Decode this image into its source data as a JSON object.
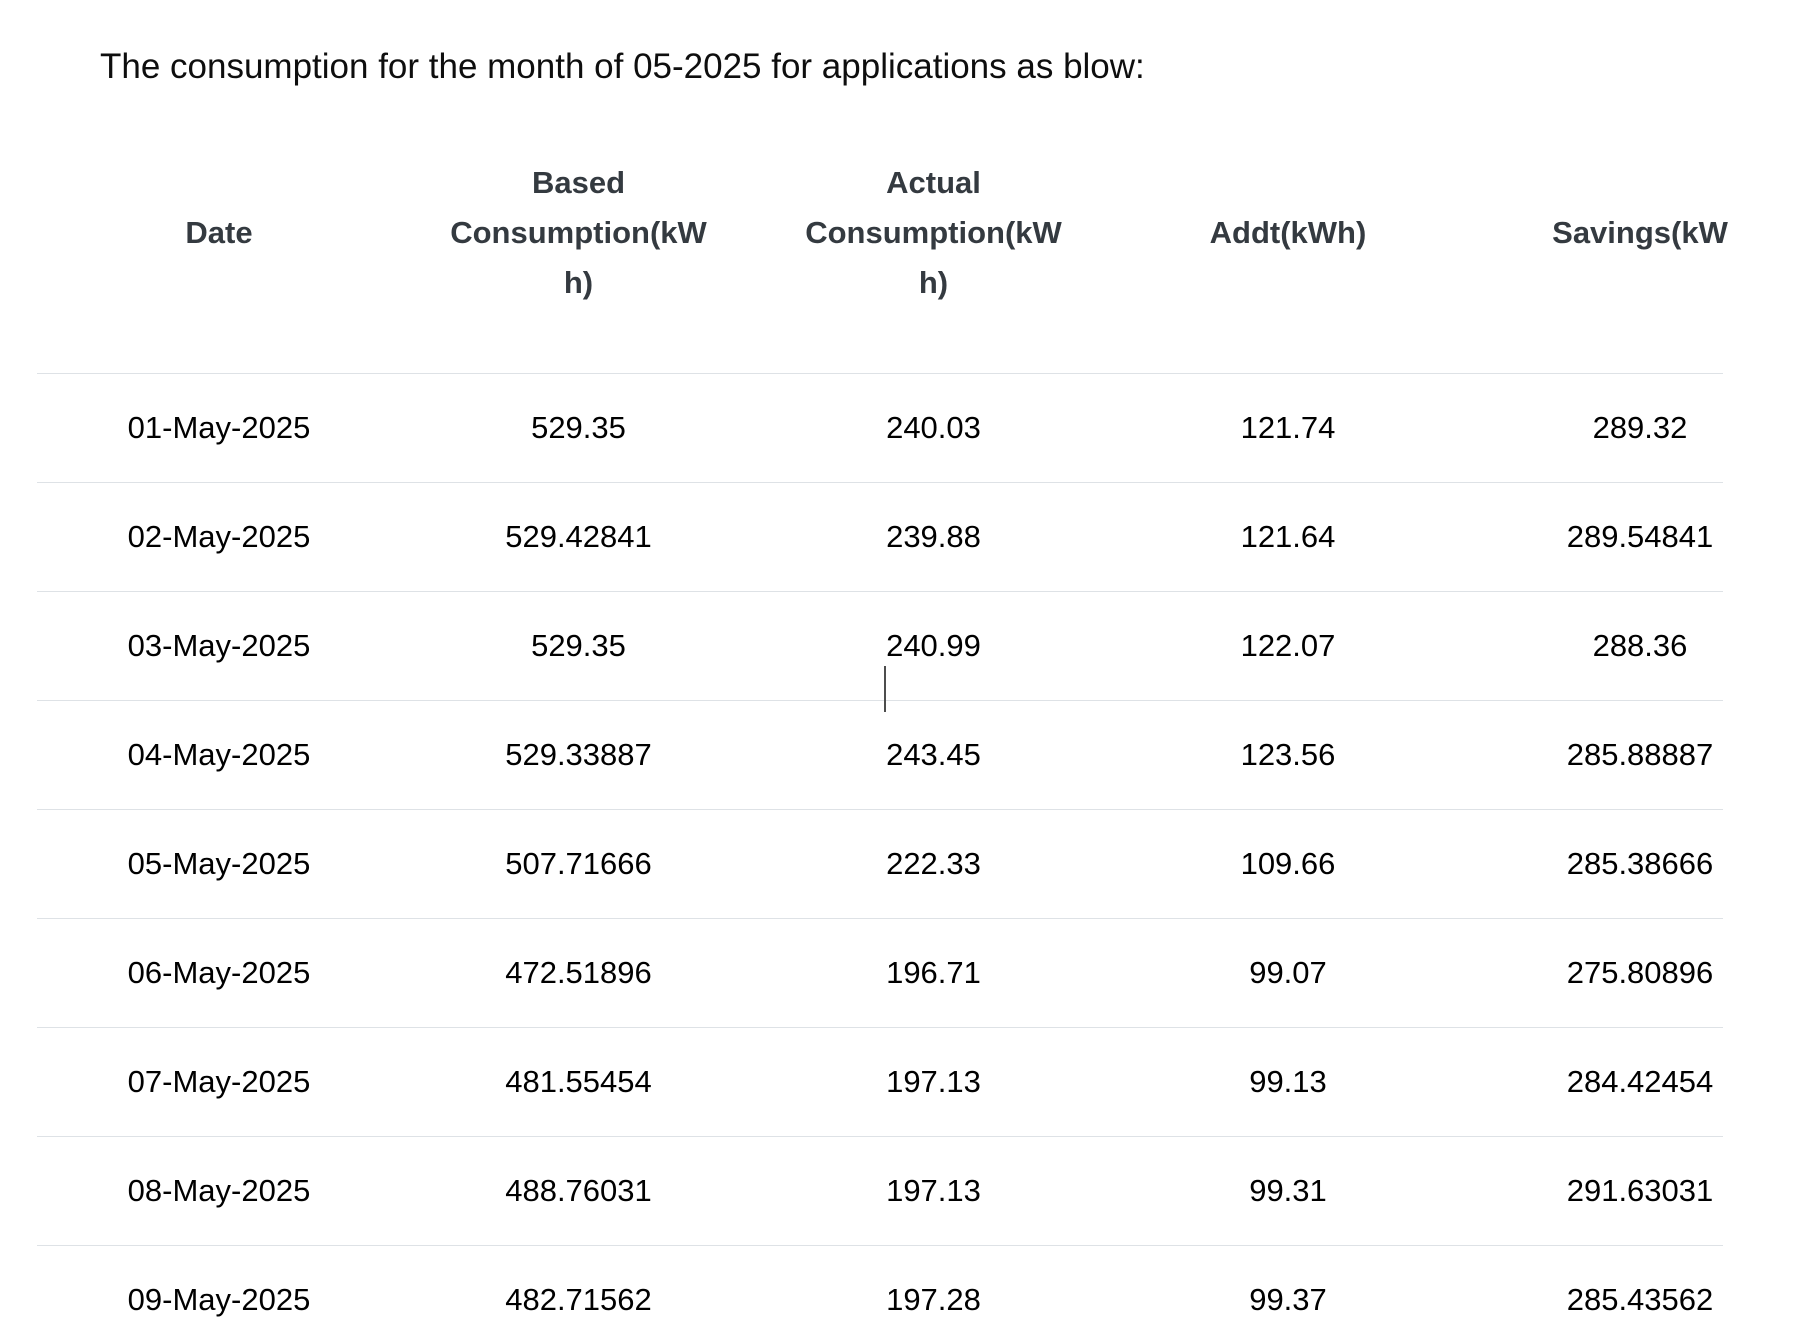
{
  "page": {
    "title": "The consumption for the month of 05-2025 for applications as blow:"
  },
  "table": {
    "columns": [
      {
        "key": "date",
        "lines": [
          "Date"
        ]
      },
      {
        "key": "based",
        "lines": [
          "Based",
          "Consumption(kW",
          "h)"
        ]
      },
      {
        "key": "actual",
        "lines": [
          "Actual",
          "Consumption(kW",
          "h)"
        ]
      },
      {
        "key": "addt",
        "lines": [
          "Addt(kWh)"
        ]
      },
      {
        "key": "savings",
        "lines": [
          "Savings(kW"
        ]
      }
    ],
    "rows": [
      {
        "date": "01-May-2025",
        "based": "529.35",
        "actual": "240.03",
        "addt": "121.74",
        "savings": "289.32"
      },
      {
        "date": "02-May-2025",
        "based": "529.42841",
        "actual": "239.88",
        "addt": "121.64",
        "savings": "289.54841"
      },
      {
        "date": "03-May-2025",
        "based": "529.35",
        "actual": "240.99",
        "addt": "122.07",
        "savings": "288.36"
      },
      {
        "date": "04-May-2025",
        "based": "529.33887",
        "actual": "243.45",
        "addt": "123.56",
        "savings": "285.88887"
      },
      {
        "date": "05-May-2025",
        "based": "507.71666",
        "actual": "222.33",
        "addt": "109.66",
        "savings": "285.38666"
      },
      {
        "date": "06-May-2025",
        "based": "472.51896",
        "actual": "196.71",
        "addt": "99.07",
        "savings": "275.80896"
      },
      {
        "date": "07-May-2025",
        "based": "481.55454",
        "actual": "197.13",
        "addt": "99.13",
        "savings": "284.42454"
      },
      {
        "date": "08-May-2025",
        "based": "488.76031",
        "actual": "197.13",
        "addt": "99.31",
        "savings": "291.63031"
      },
      {
        "date": "09-May-2025",
        "based": "482.71562",
        "actual": "197.28",
        "addt": "99.37",
        "savings": "285.43562"
      }
    ]
  },
  "caret": {
    "visible": true,
    "in_row_date": "03-May-2025",
    "in_column": "actual"
  },
  "colors": {
    "background": "#ffffff",
    "title_text": "#0e0e0e",
    "header_text": "#343a40",
    "body_text": "#000000",
    "row_border": "#dee2e6",
    "caret": "#4d4d4d",
    "selection_indicator": "#4285f4"
  }
}
